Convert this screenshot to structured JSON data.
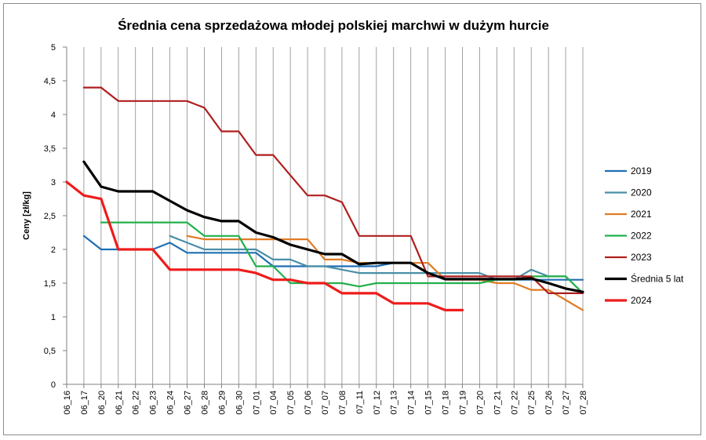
{
  "chart_data": {
    "type": "line",
    "title": "Średnia cena sprzedażowa młodej polskiej marchwi w dużym hurcie",
    "xlabel": "",
    "ylabel": "Ceny [zł/kg]",
    "ylim": [
      0,
      5
    ],
    "yticks": [
      "0",
      "0,5",
      "1",
      "1,5",
      "2",
      "2,5",
      "3",
      "3,5",
      "4",
      "4,5",
      "5"
    ],
    "grid": "vertical",
    "legend_position": "right",
    "categories": [
      "06_16",
      "06_17",
      "06_20",
      "06_21",
      "06_22",
      "06_23",
      "06_24",
      "06_27",
      "06_28",
      "06_29",
      "06_30",
      "07_01",
      "07_04",
      "07_05",
      "07_06",
      "07_07",
      "07_08",
      "07_11",
      "07_12",
      "07_13",
      "07_14",
      "07_15",
      "07_18",
      "07_19",
      "07_20",
      "07_21",
      "07_22",
      "07_25",
      "07_26",
      "07_27",
      "07_28"
    ],
    "series": [
      {
        "name": "2019",
        "color": "#1f6fb4",
        "width": 2.2,
        "values": [
          null,
          2.2,
          2.0,
          2.0,
          2.0,
          2.0,
          2.1,
          1.95,
          1.95,
          1.95,
          1.95,
          1.95,
          1.75,
          1.75,
          1.75,
          1.75,
          1.75,
          1.75,
          1.75,
          1.8,
          1.8,
          1.65,
          1.55,
          1.55,
          1.55,
          1.55,
          1.55,
          1.55,
          1.55,
          1.55,
          1.55
        ]
      },
      {
        "name": "2020",
        "color": "#4a8fa8",
        "width": 2.2,
        "values": [
          null,
          null,
          null,
          null,
          null,
          null,
          2.2,
          2.1,
          2.0,
          2.0,
          2.0,
          2.0,
          1.85,
          1.85,
          1.75,
          1.75,
          1.7,
          1.65,
          1.65,
          1.65,
          1.65,
          1.65,
          1.65,
          1.65,
          1.65,
          1.55,
          1.55,
          1.7,
          1.6,
          1.6,
          1.35
        ]
      },
      {
        "name": "2021",
        "color": "#e07b24",
        "width": 2.2,
        "values": [
          null,
          null,
          null,
          null,
          null,
          null,
          null,
          2.2,
          2.15,
          2.15,
          2.15,
          2.15,
          2.15,
          2.15,
          2.15,
          1.85,
          1.85,
          1.8,
          1.8,
          1.8,
          1.8,
          1.8,
          1.55,
          1.55,
          1.55,
          1.5,
          1.5,
          1.4,
          1.4,
          1.25,
          1.1
        ]
      },
      {
        "name": "2022",
        "color": "#22b04b",
        "width": 2.2,
        "values": [
          null,
          null,
          2.4,
          2.4,
          2.4,
          2.4,
          2.4,
          2.4,
          2.2,
          2.2,
          2.2,
          1.75,
          1.75,
          1.5,
          1.5,
          1.5,
          1.5,
          1.45,
          1.5,
          1.5,
          1.5,
          1.5,
          1.5,
          1.5,
          1.5,
          1.55,
          1.55,
          1.6,
          1.6,
          1.6,
          1.35
        ]
      },
      {
        "name": "2023",
        "color": "#b01e1e",
        "width": 2.2,
        "values": [
          null,
          4.4,
          4.4,
          4.2,
          4.2,
          4.2,
          4.2,
          4.2,
          4.1,
          3.75,
          3.75,
          3.4,
          3.4,
          3.1,
          2.8,
          2.8,
          2.7,
          2.2,
          2.2,
          2.2,
          2.2,
          1.6,
          1.6,
          1.6,
          1.6,
          1.6,
          1.6,
          1.6,
          1.35,
          1.35,
          1.35
        ]
      },
      {
        "name": "Średnia 5 lat",
        "color": "#000000",
        "width": 3.2,
        "values": [
          null,
          3.3,
          2.93,
          2.86,
          2.86,
          2.86,
          2.72,
          2.58,
          2.48,
          2.42,
          2.42,
          2.25,
          2.18,
          2.07,
          2.0,
          1.93,
          1.93,
          1.78,
          1.8,
          1.8,
          1.8,
          1.65,
          1.56,
          1.56,
          1.56,
          1.56,
          1.56,
          1.57,
          1.5,
          1.42,
          1.37
        ]
      },
      {
        "name": "2024",
        "color": "#ee1c1c",
        "width": 3.2,
        "values": [
          3.0,
          2.8,
          2.75,
          2.0,
          2.0,
          2.0,
          1.7,
          1.7,
          1.7,
          1.7,
          1.7,
          1.65,
          1.55,
          1.55,
          1.5,
          1.5,
          1.35,
          1.35,
          1.35,
          1.2,
          1.2,
          1.2,
          1.1,
          1.1,
          null,
          null,
          null,
          null,
          null,
          null,
          null
        ]
      }
    ]
  }
}
